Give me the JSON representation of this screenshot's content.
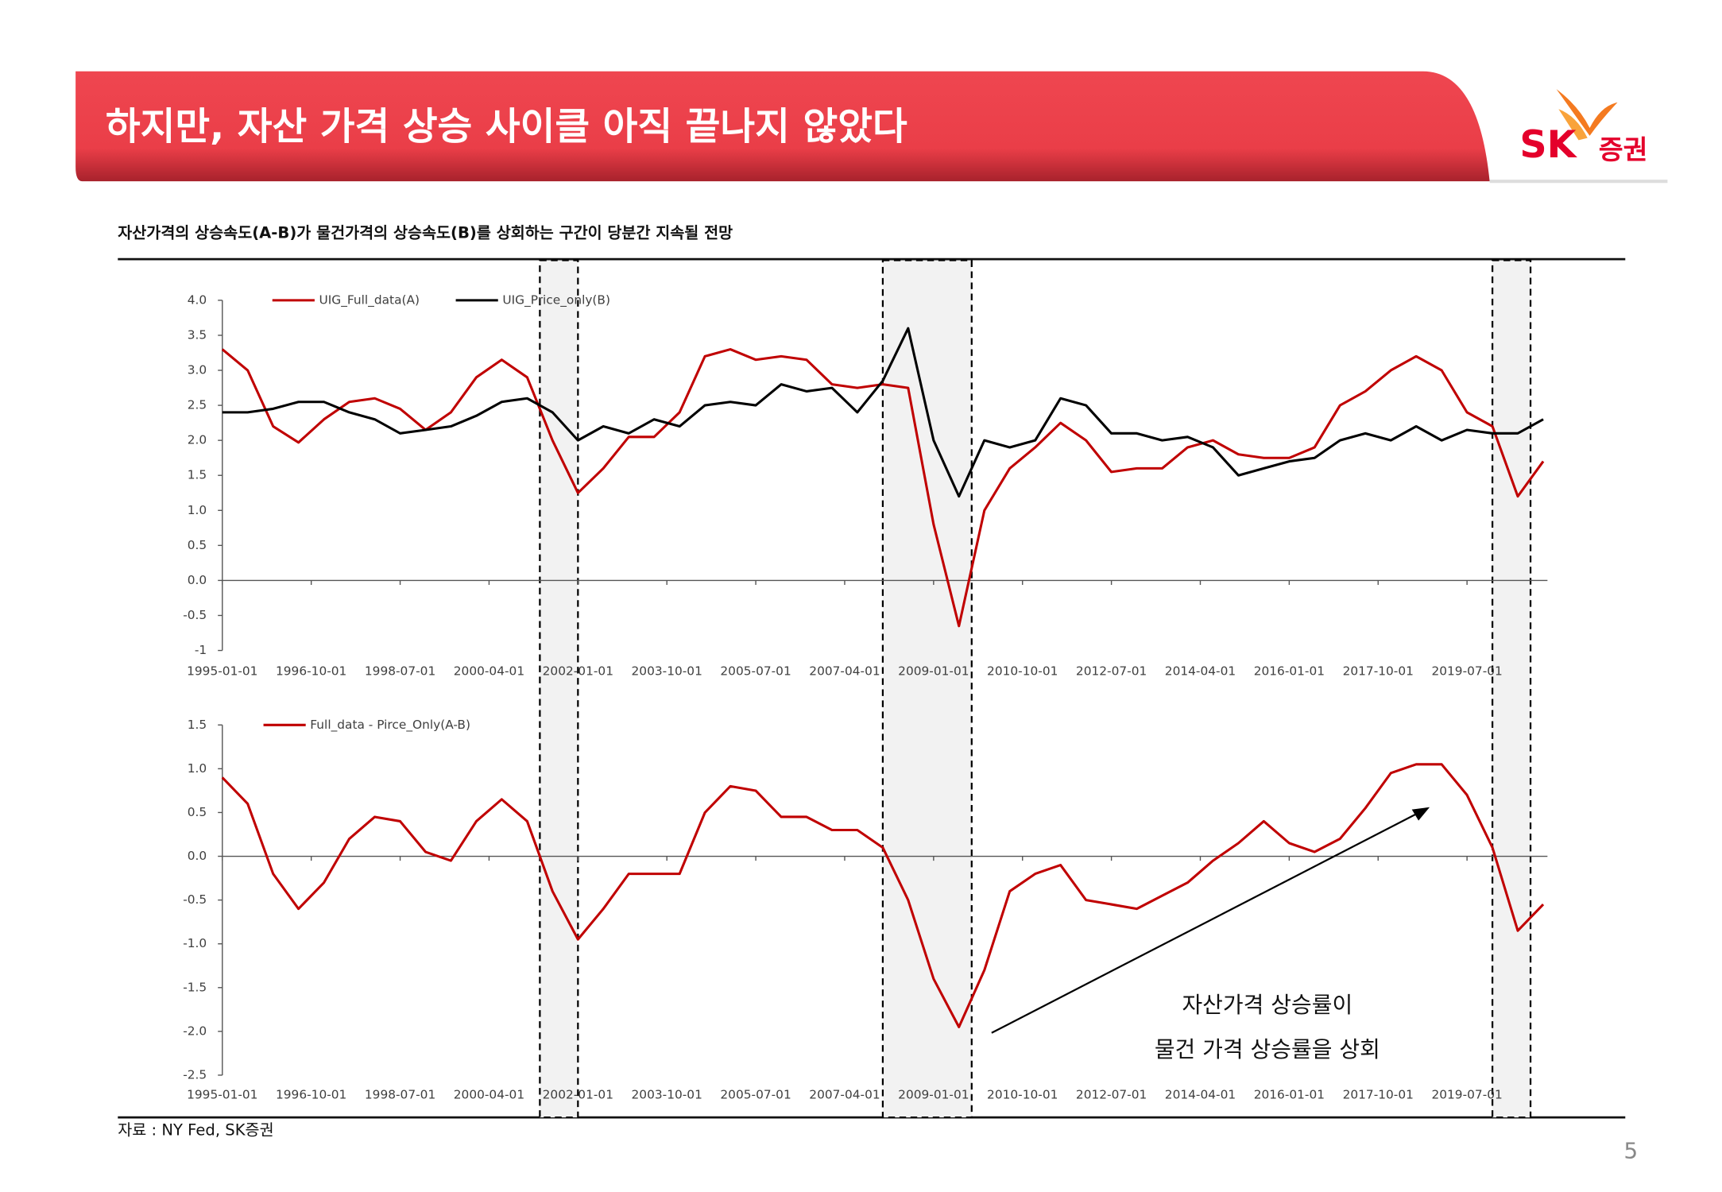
{
  "header": {
    "title": "하지만, 자산 가격 상승 사이클 아직 끝나지 않았다",
    "logo": "SK",
    "logo_sub": "증권"
  },
  "subtitle": "자산가격의 상승속도(A-B)가 물건가격의 상승속도(B)를 상회하는 구간이 당분간 지속될 전망",
  "shaded_periods": [
    [
      "2001-04-01",
      "2002-01-01"
    ],
    [
      "2008-01-01",
      "2009-10-01"
    ],
    [
      "2020-01-01",
      "2020-10-01"
    ]
  ],
  "chart_data": [
    {
      "type": "line",
      "x": [
        "1995-01-01",
        "1995-07-01",
        "1996-01-01",
        "1996-07-01",
        "1997-01-01",
        "1997-07-01",
        "1998-01-01",
        "1998-07-01",
        "1999-01-01",
        "1999-07-01",
        "2000-01-01",
        "2000-07-01",
        "2001-01-01",
        "2001-07-01",
        "2002-01-01",
        "2002-07-01",
        "2003-01-01",
        "2003-07-01",
        "2004-01-01",
        "2004-07-01",
        "2005-01-01",
        "2005-07-01",
        "2006-01-01",
        "2006-07-01",
        "2007-01-01",
        "2007-07-01",
        "2008-01-01",
        "2008-07-01",
        "2009-01-01",
        "2009-07-01",
        "2010-01-01",
        "2010-07-01",
        "2011-01-01",
        "2011-07-01",
        "2012-01-01",
        "2012-07-01",
        "2013-01-01",
        "2013-07-01",
        "2014-01-01",
        "2014-07-01",
        "2015-01-01",
        "2015-07-01",
        "2016-01-01",
        "2016-07-01",
        "2017-01-01",
        "2017-07-01",
        "2018-01-01",
        "2018-07-01",
        "2019-01-01",
        "2019-07-01",
        "2020-01-01",
        "2020-07-01",
        "2021-01-01"
      ],
      "series": [
        {
          "name": "UIG_Full_data(A)",
          "color": "#c00000",
          "values": [
            3.3,
            3.0,
            2.2,
            1.97,
            2.3,
            2.55,
            2.6,
            2.45,
            2.15,
            2.4,
            2.9,
            3.15,
            2.9,
            2.0,
            1.25,
            1.6,
            2.05,
            2.05,
            2.4,
            3.2,
            3.3,
            3.15,
            3.2,
            3.15,
            2.8,
            2.75,
            2.8,
            2.75,
            0.8,
            -0.65,
            1.0,
            1.6,
            1.9,
            2.25,
            2.0,
            1.55,
            1.6,
            1.6,
            1.9,
            2.0,
            1.8,
            1.75,
            1.75,
            1.9,
            2.5,
            2.7,
            3.0,
            3.2,
            3.0,
            2.4,
            2.2,
            1.2,
            1.7
          ]
        },
        {
          "name": "UIG_Price_only(B)",
          "color": "#000000",
          "values": [
            2.4,
            2.4,
            2.45,
            2.55,
            2.55,
            2.4,
            2.3,
            2.1,
            2.15,
            2.2,
            2.35,
            2.55,
            2.6,
            2.4,
            2.0,
            2.2,
            2.1,
            2.3,
            2.2,
            2.5,
            2.55,
            2.5,
            2.8,
            2.7,
            2.75,
            2.4,
            2.85,
            3.6,
            2.0,
            1.2,
            2.0,
            1.9,
            2.0,
            2.6,
            2.5,
            2.1,
            2.1,
            2.0,
            2.05,
            1.9,
            1.5,
            1.6,
            1.7,
            1.75,
            2.0,
            2.1,
            2.0,
            2.2,
            2.0,
            2.15,
            2.1,
            2.1,
            2.3
          ]
        }
      ],
      "xlim": [
        "1995-01-01",
        "2021-02-01"
      ],
      "xticks": [
        "1995-01-01",
        "1996-10-01",
        "1998-07-01",
        "2000-04-01",
        "2002-01-01",
        "2003-10-01",
        "2005-07-01",
        "2007-04-01",
        "2009-01-01",
        "2010-10-01",
        "2012-07-01",
        "2014-04-01",
        "2016-01-01",
        "2017-10-01",
        "2019-07-01"
      ],
      "ylim": [
        -1,
        4
      ],
      "yticks": [
        -1,
        -0.5,
        {
          "value": 0,
          "label": "0.0"
        },
        0.5,
        {
          "value": 1,
          "label": "1.0"
        },
        1.5,
        {
          "value": 2,
          "label": "2.0"
        },
        2.5,
        {
          "value": 3,
          "label": "3.0"
        },
        3.5,
        {
          "value": 4,
          "label": "4.0"
        }
      ]
    },
    {
      "type": "line",
      "x": [
        "1995-01-01",
        "1995-07-01",
        "1996-01-01",
        "1996-07-01",
        "1997-01-01",
        "1997-07-01",
        "1998-01-01",
        "1998-07-01",
        "1999-01-01",
        "1999-07-01",
        "2000-01-01",
        "2000-07-01",
        "2001-01-01",
        "2001-07-01",
        "2002-01-01",
        "2002-07-01",
        "2003-01-01",
        "2003-07-01",
        "2004-01-01",
        "2004-07-01",
        "2005-01-01",
        "2005-07-01",
        "2006-01-01",
        "2006-07-01",
        "2007-01-01",
        "2007-07-01",
        "2008-01-01",
        "2008-07-01",
        "2009-01-01",
        "2009-07-01",
        "2010-01-01",
        "2010-07-01",
        "2011-01-01",
        "2011-07-01",
        "2012-01-01",
        "2012-07-01",
        "2013-01-01",
        "2013-07-01",
        "2014-01-01",
        "2014-07-01",
        "2015-01-01",
        "2015-07-01",
        "2016-01-01",
        "2016-07-01",
        "2017-01-01",
        "2017-07-01",
        "2018-01-01",
        "2018-07-01",
        "2019-01-01",
        "2019-07-01",
        "2020-01-01",
        "2020-07-01",
        "2021-01-01"
      ],
      "series": [
        {
          "name": "Full_data - Pirce_Only(A-B)",
          "color": "#c00000",
          "values": [
            0.9,
            0.6,
            -0.2,
            -0.6,
            -0.3,
            0.2,
            0.45,
            0.4,
            0.05,
            -0.05,
            0.4,
            0.65,
            0.4,
            -0.4,
            -0.95,
            -0.6,
            -0.2,
            -0.2,
            -0.2,
            0.5,
            0.8,
            0.75,
            0.45,
            0.45,
            0.3,
            0.3,
            0.1,
            -0.5,
            -1.4,
            -1.95,
            -1.3,
            -0.4,
            -0.2,
            -0.1,
            -0.5,
            -0.55,
            -0.6,
            -0.45,
            -0.3,
            -0.05,
            0.15,
            0.4,
            0.15,
            0.05,
            0.2,
            0.55,
            0.95,
            1.05,
            1.05,
            0.7,
            0.1,
            -0.85,
            -0.55
          ]
        }
      ],
      "xlim": [
        "1995-01-01",
        "2021-02-01"
      ],
      "xticks": [
        "1995-01-01",
        "1996-10-01",
        "1998-07-01",
        "2000-04-01",
        "2002-01-01",
        "2003-10-01",
        "2005-07-01",
        "2007-04-01",
        "2009-01-01",
        "2010-10-01",
        "2012-07-01",
        "2014-04-01",
        "2016-01-01",
        "2017-10-01",
        "2019-07-01"
      ],
      "ylim": [
        -2.5,
        1.5
      ],
      "yticks": [
        -2.5,
        {
          "value": -2,
          "label": "-2.0"
        },
        -1.5,
        {
          "value": -1,
          "label": "-1.0"
        },
        -0.5,
        {
          "value": 0,
          "label": "0.0"
        },
        0.5,
        {
          "value": 1,
          "label": "1.0"
        },
        1.5
      ],
      "annotation": [
        "자산가격 상승률이",
        "물건 가격 상승률을 상회"
      ]
    }
  ],
  "source": "자료 : NY Fed, SK증권",
  "page": "5"
}
